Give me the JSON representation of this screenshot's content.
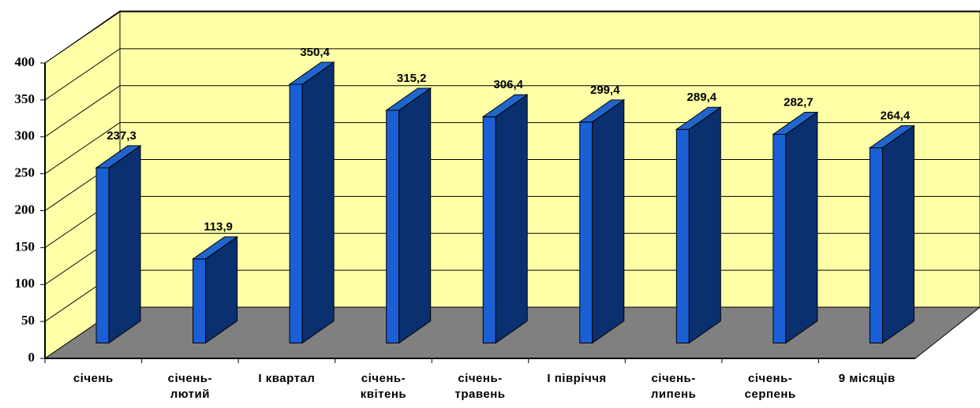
{
  "chart_data": {
    "type": "bar3d",
    "categories": [
      "січень",
      "січень-лютий",
      "I квартал",
      "січень-квітень",
      "січень-травень",
      "I півріччя",
      "січень-липень",
      "січень-серпень",
      "9 місяців"
    ],
    "values": [
      237.3,
      113.9,
      350.4,
      315.2,
      306.4,
      299.4,
      289.4,
      282.7,
      264.4
    ],
    "value_labels": [
      "237,3",
      "113,9",
      "350,4",
      "315,2",
      "306,4",
      "299,4",
      "289,4",
      "282,7",
      "264,4"
    ],
    "color": "#1a5fd6",
    "ylim": [
      0,
      400
    ],
    "yticks": [
      0,
      50,
      100,
      150,
      200,
      250,
      300,
      350,
      400
    ],
    "grid": true
  }
}
